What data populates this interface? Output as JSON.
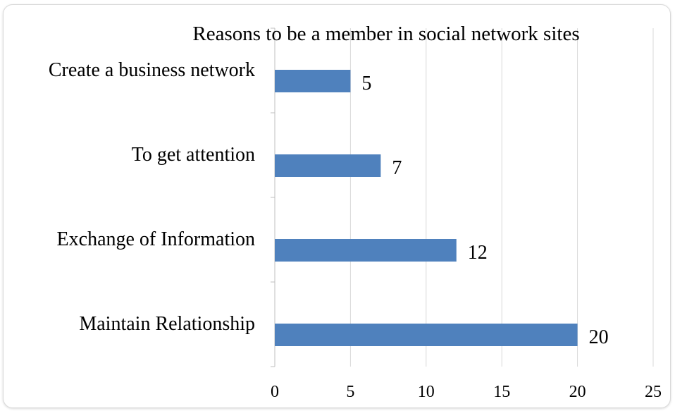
{
  "chart_data": {
    "type": "bar",
    "orientation": "horizontal",
    "title": "Reasons to be a member in social network sites",
    "xlabel": "",
    "ylabel": "",
    "categories": [
      "Create a business network",
      "To get attention",
      "Exchange of Information",
      "Maintain Relationship"
    ],
    "values": [
      5,
      7,
      12,
      20
    ],
    "xlim": [
      0,
      25
    ],
    "xticks": [
      "0",
      "5",
      "10",
      "15",
      "20",
      "25"
    ],
    "data_labels": [
      "5",
      "7",
      "12",
      "20"
    ],
    "grid": "vertical",
    "bar_color": "#4f81bd",
    "grid_color": "#d9d9d9",
    "legend": "none"
  }
}
